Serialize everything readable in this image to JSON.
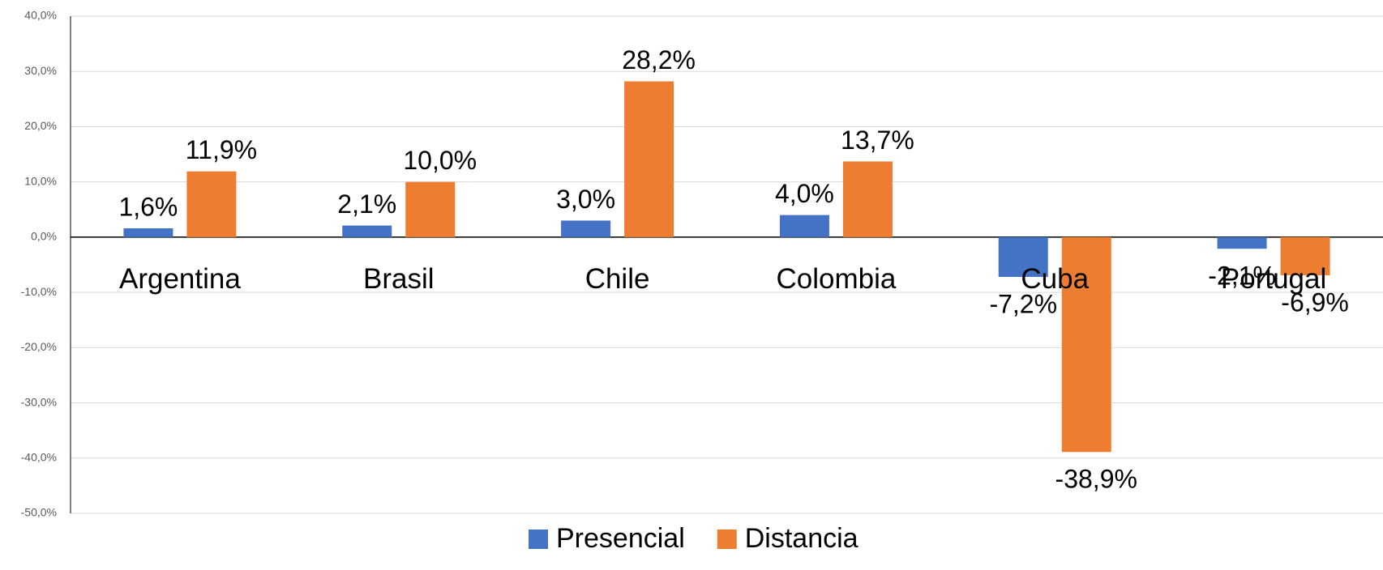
{
  "chart_data": {
    "type": "bar",
    "categories": [
      "Argentina",
      "Brasil",
      "Chile",
      "Colombia",
      "Cuba",
      "Portugal"
    ],
    "series": [
      {
        "name": "Presencial",
        "color": "#4472c4",
        "values": [
          1.6,
          2.1,
          3.0,
          4.0,
          -7.2,
          -2.1
        ],
        "value_labels": [
          "1,6%",
          "2,1%",
          "3,0%",
          "4,0%",
          "-7,2%",
          "-2,1%"
        ]
      },
      {
        "name": "Distancia",
        "color": "#ed7d31",
        "values": [
          11.9,
          10.0,
          28.2,
          13.7,
          -38.9,
          -6.9
        ],
        "value_labels": [
          "11,9%",
          "10,0%",
          "28,2%",
          "13,7%",
          "-38,9%",
          "-6,9%"
        ]
      }
    ],
    "ylim": [
      -50,
      40
    ],
    "yticks": [
      {
        "value": -50,
        "label": "-50,0%"
      },
      {
        "value": -40,
        "label": "-40,0%"
      },
      {
        "value": -30,
        "label": "-30,0%"
      },
      {
        "value": -20,
        "label": "-20,0%"
      },
      {
        "value": -10,
        "label": "-10,0%"
      },
      {
        "value": 0,
        "label": "0,0%"
      },
      {
        "value": 10,
        "label": "10,0%"
      },
      {
        "value": 20,
        "label": "20,0%"
      },
      {
        "value": 30,
        "label": "30,0%"
      },
      {
        "value": 40,
        "label": "40,0%"
      }
    ],
    "grid": true,
    "legend": "bottom"
  }
}
